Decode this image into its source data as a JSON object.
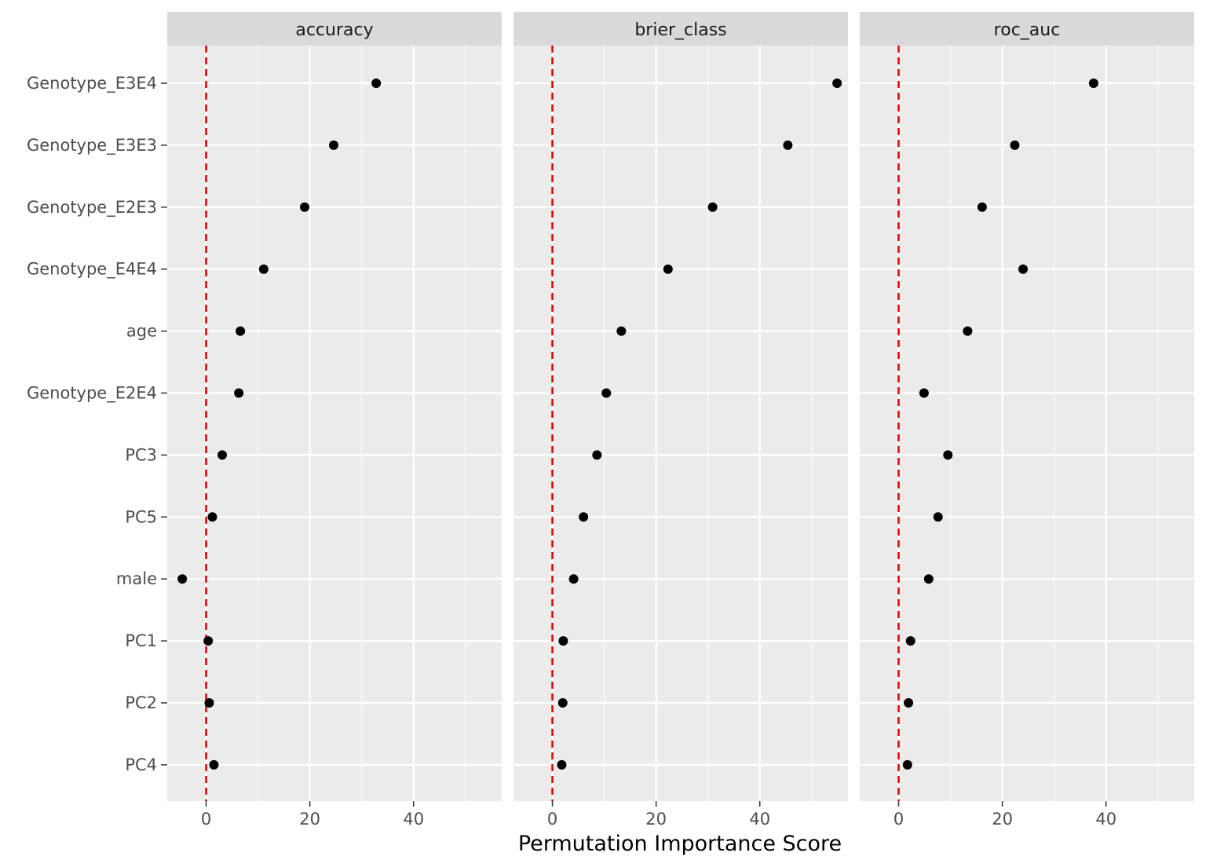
{
  "chart_data": {
    "type": "scatter",
    "xlabel": "Permutation Importance Score",
    "ylabel": "",
    "xlim": [
      -7.5,
      57
    ],
    "x_ticks": [
      0,
      20,
      40
    ],
    "x_minor_ticks": [
      10,
      30,
      50
    ],
    "reference_line": {
      "x": 0,
      "color": "#e00000",
      "style": "dashed"
    },
    "point_color": "#000000",
    "panel_background": "#ebebeb",
    "strip_background": "#d9d9d9",
    "grid": true,
    "categories": [
      "Genotype_E3E4",
      "Genotype_E3E3",
      "Genotype_E2E3",
      "Genotype_E4E4",
      "age",
      "Genotype_E2E4",
      "PC3",
      "PC5",
      "male",
      "PC1",
      "PC2",
      "PC4"
    ],
    "facets": [
      {
        "name": "accuracy",
        "values": [
          32.8,
          24.6,
          19.0,
          11.1,
          6.6,
          6.3,
          3.1,
          1.2,
          -4.6,
          0.4,
          0.6,
          1.5
        ]
      },
      {
        "name": "brier_class",
        "values": [
          54.9,
          45.4,
          30.9,
          22.3,
          13.3,
          10.4,
          8.6,
          6.0,
          4.1,
          2.1,
          2.0,
          1.8
        ]
      },
      {
        "name": "roc_auc",
        "values": [
          37.6,
          22.4,
          16.1,
          24.0,
          13.3,
          4.9,
          9.5,
          7.6,
          5.8,
          2.3,
          1.9,
          1.7
        ]
      }
    ]
  }
}
